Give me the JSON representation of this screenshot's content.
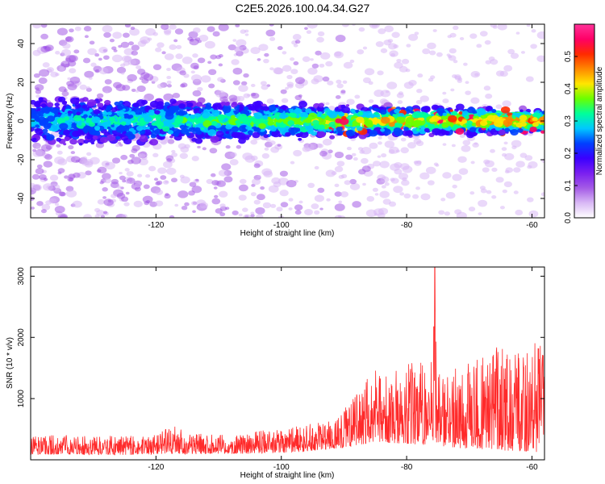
{
  "figure": {
    "title": "C2E5.2026.100.04.34.G27"
  },
  "chart_data": [
    {
      "type": "heatmap",
      "title": "",
      "xlabel": "Height of straight line (km)",
      "ylabel": "Frequency (Hz)",
      "xlim": [
        -140,
        -58
      ],
      "ylim": [
        -50,
        50
      ],
      "xticks": [
        -120,
        -100,
        -80,
        -60
      ],
      "yticks": [
        -40,
        -20,
        0,
        20,
        40
      ],
      "colorbar": {
        "label": "Normalized spectral amplitude",
        "range": [
          0.0,
          0.6
        ],
        "ticks": [
          "0.0",
          "0.1",
          "0.2",
          "0.3",
          "0.4",
          "0.5"
        ],
        "colors": [
          "#ffffff",
          "#d9b8f5",
          "#a45be6",
          "#7a1ff0",
          "#3a00ff",
          "#0040ff",
          "#00c8ff",
          "#00ff9a",
          "#6aff00",
          "#ffe600",
          "#ff8800",
          "#ff2a00",
          "#ff0066",
          "#ff3399"
        ]
      },
      "description_band": {
        "center_frequency_hz": 0,
        "half_width_hz_left": 12,
        "half_width_hz_right": 6
      }
    },
    {
      "type": "line",
      "title": "",
      "xlabel": "Height of straight line (km)",
      "ylabel": "SNR (10 * v/v)",
      "xlim": [
        -140,
        -58
      ],
      "ylim": [
        0,
        3150
      ],
      "xticks": [
        -120,
        -100,
        -80,
        -60
      ],
      "yticks": [
        1000,
        2000,
        3000
      ],
      "series": [
        {
          "color": "#ff2a2a",
          "x": [
            -140,
            -135,
            -130,
            -125,
            -120,
            -117,
            -115,
            -110,
            -105,
            -100,
            -97,
            -95,
            -92,
            -90,
            -87,
            -85,
            -83,
            -80,
            -78,
            -76,
            -75.5,
            -75,
            -73,
            -70,
            -67,
            -65,
            -62,
            -60,
            -58
          ],
          "envelope_high": [
            380,
            420,
            400,
            390,
            410,
            580,
            420,
            430,
            450,
            520,
            560,
            600,
            700,
            850,
            1200,
            1650,
            1500,
            1550,
            1700,
            1650,
            3150,
            1400,
            1450,
            1600,
            1700,
            1900,
            1800,
            1950,
            1900
          ],
          "envelope_low": [
            80,
            90,
            85,
            80,
            90,
            100,
            90,
            95,
            100,
            110,
            130,
            150,
            180,
            200,
            250,
            300,
            280,
            260,
            250,
            230,
            200,
            220,
            200,
            180,
            170,
            150,
            140,
            130,
            120
          ]
        }
      ]
    }
  ]
}
